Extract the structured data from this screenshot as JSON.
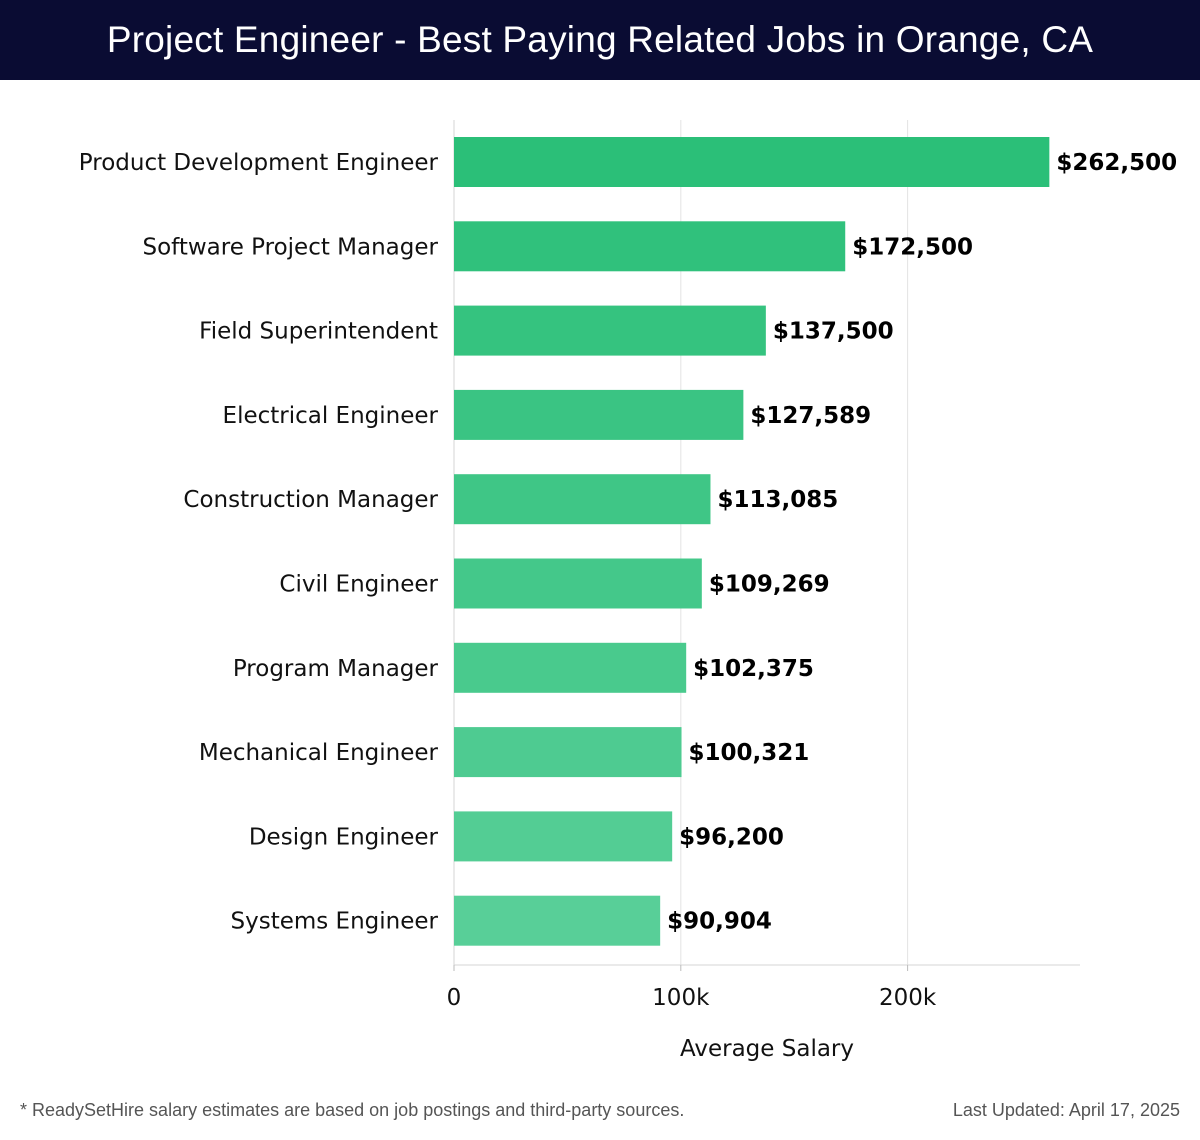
{
  "header": {
    "title": "Project Engineer - Best Paying Related Jobs in Orange, CA"
  },
  "chart_data": {
    "type": "bar",
    "orientation": "horizontal",
    "categories": [
      "Product Development Engineer",
      "Software Project Manager",
      "Field Superintendent",
      "Electrical Engineer",
      "Construction Manager",
      "Civil Engineer",
      "Program Manager",
      "Mechanical Engineer",
      "Design Engineer",
      "Systems Engineer"
    ],
    "values": [
      262500,
      172500,
      137500,
      127589,
      113085,
      109269,
      102375,
      100321,
      96200,
      90904
    ],
    "value_labels": [
      "$262,500",
      "$172,500",
      "$137,500",
      "$127,589",
      "$113,085",
      "$109,269",
      "$102,375",
      "$100,321",
      "$96,200",
      "$90,904"
    ],
    "xlabel": "Average Salary",
    "ylabel": "",
    "xlim": [
      0,
      275000
    ],
    "x_ticks": [
      0,
      100000,
      200000
    ],
    "x_tick_labels": [
      "0",
      "100k",
      "200k"
    ],
    "grid": true,
    "bar_colors": {
      "top": "#2bbf78",
      "bottom": "#58cf98"
    }
  },
  "footer": {
    "note": "* ReadySetHire salary estimates are based on job postings and third-party sources.",
    "updated": "Last Updated: April 17, 2025"
  }
}
